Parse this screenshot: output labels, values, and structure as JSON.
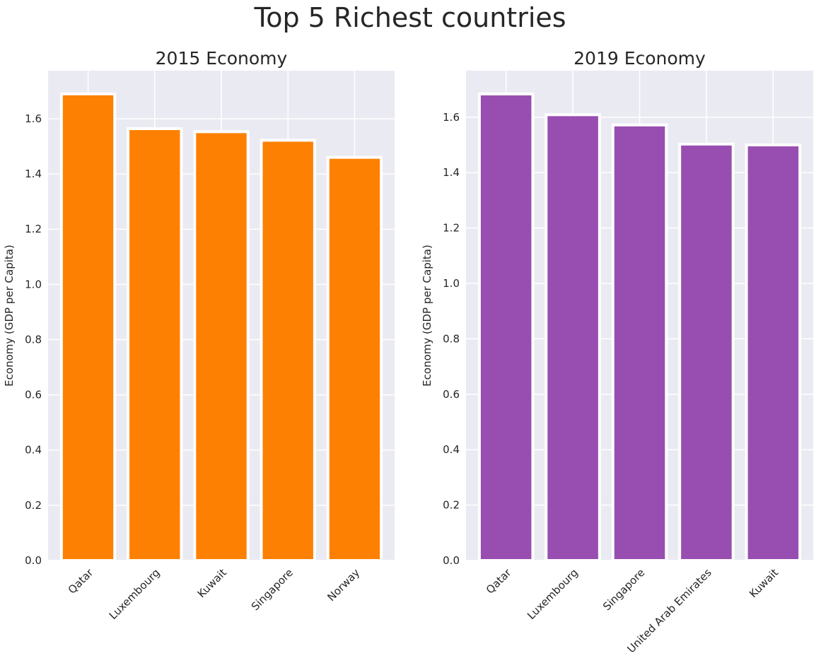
{
  "figure": {
    "title": "Top 5 Richest countries"
  },
  "chart_data": [
    {
      "type": "bar",
      "title": "2015 Economy",
      "xlabel": "",
      "ylabel": "Economy (GDP per Capita)",
      "categories": [
        "Qatar",
        "Luxembourg",
        "Kuwait",
        "Singapore",
        "Norway"
      ],
      "values": [
        1.69,
        1.564,
        1.553,
        1.522,
        1.46
      ],
      "ylim": [
        0,
        1.774
      ],
      "yticks": [
        0.0,
        0.2,
        0.4,
        0.6,
        0.8,
        1.0,
        1.2,
        1.4,
        1.6
      ],
      "ytick_labels": [
        "0.0",
        "0.2",
        "0.4",
        "0.6",
        "0.8",
        "1.0",
        "1.2",
        "1.4",
        "1.6"
      ],
      "bar_color": "#fd8002",
      "grid": true
    },
    {
      "type": "bar",
      "title": "2019 Economy",
      "xlabel": "",
      "ylabel": "Economy (GDP per Capita)",
      "categories": [
        "Qatar",
        "Luxembourg",
        "Singapore",
        "United Arab Emirates",
        "Kuwait"
      ],
      "values": [
        1.684,
        1.609,
        1.572,
        1.503,
        1.5
      ],
      "ylim": [
        0,
        1.768
      ],
      "yticks": [
        0.0,
        0.2,
        0.4,
        0.6,
        0.8,
        1.0,
        1.2,
        1.4,
        1.6
      ],
      "ytick_labels": [
        "0.0",
        "0.2",
        "0.4",
        "0.6",
        "0.8",
        "1.0",
        "1.2",
        "1.4",
        "1.6"
      ],
      "bar_color": "#984eb0",
      "grid": true
    }
  ]
}
